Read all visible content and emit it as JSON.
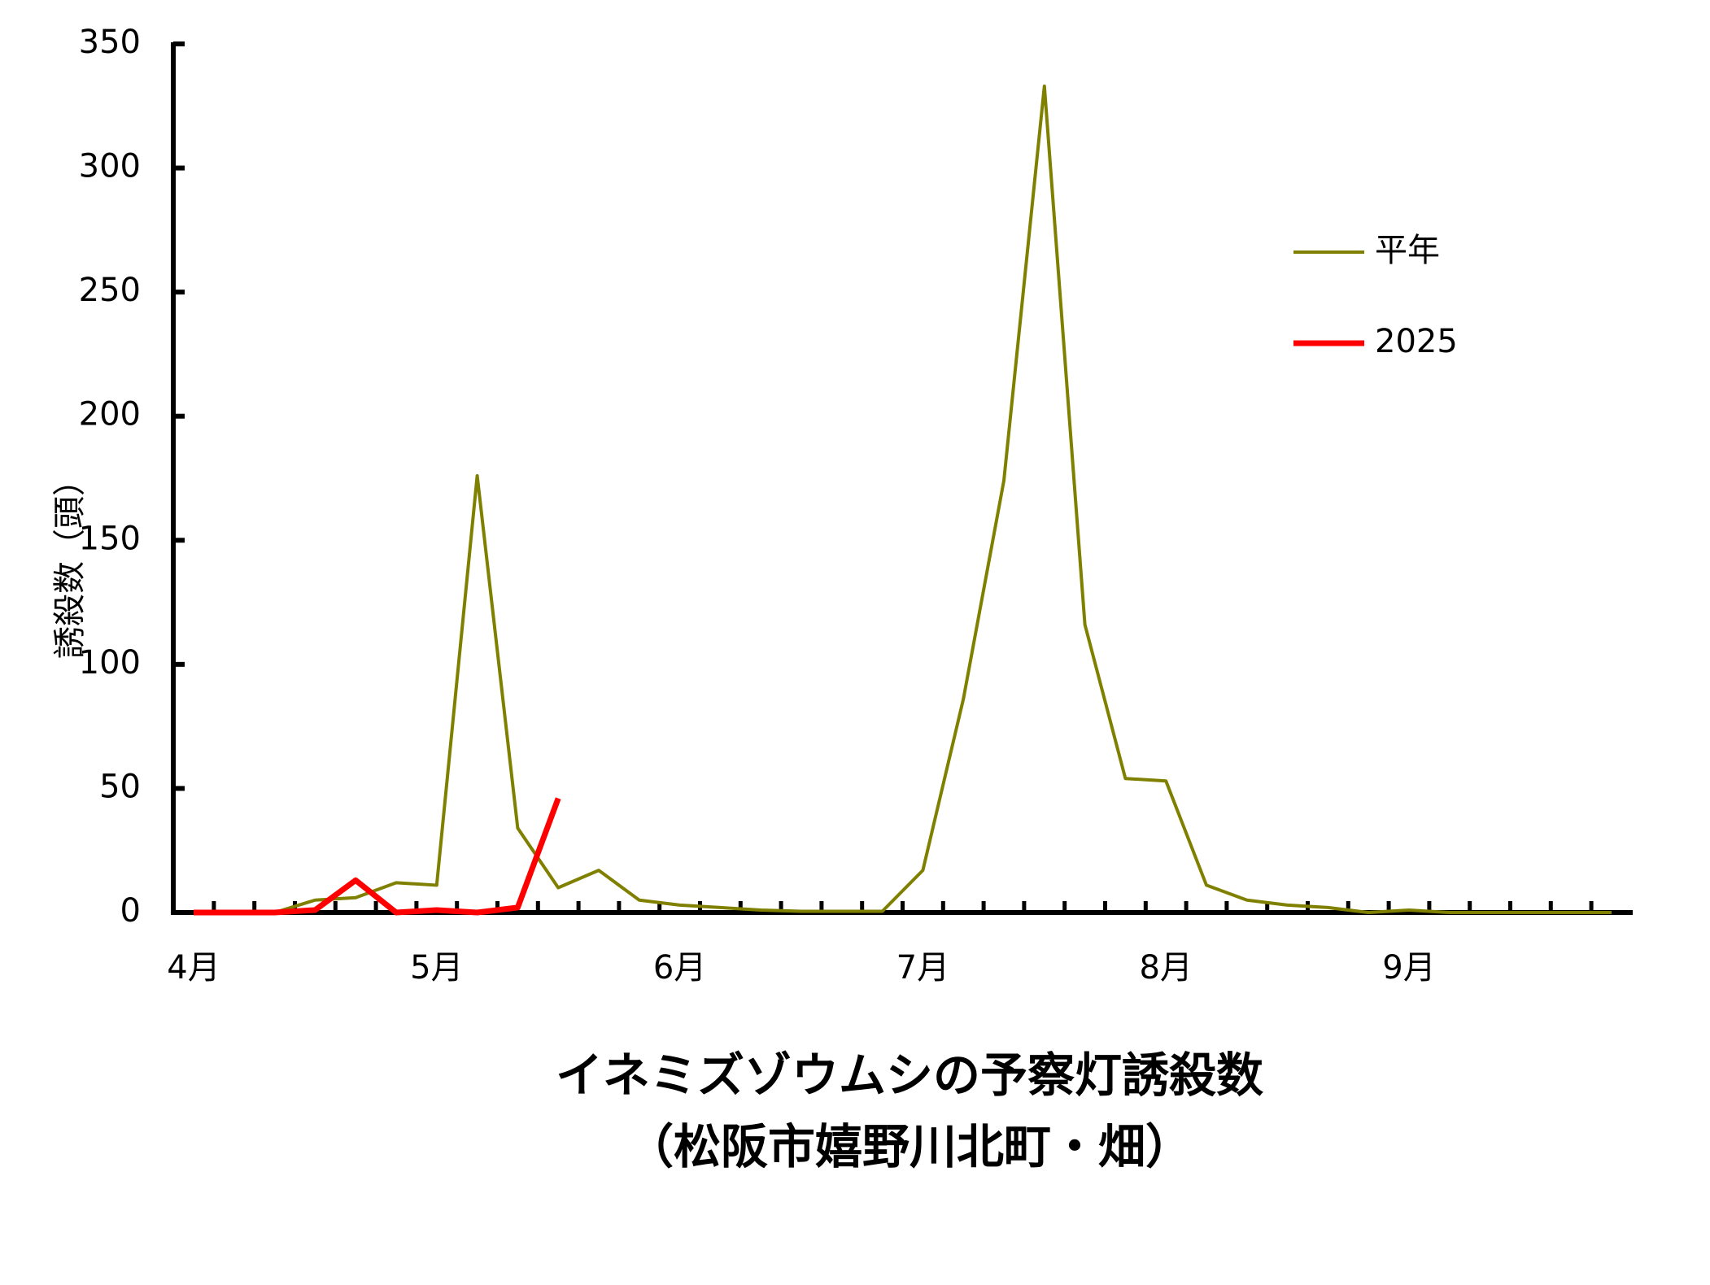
{
  "chart_data": {
    "type": "line",
    "title": "イネミズゾウムシの予察灯誘殺数",
    "subtitle": "（松阪市嬉野川北町・畑）",
    "y_label": "誘殺数（頭）",
    "categories": [
      "4月",
      null,
      null,
      null,
      null,
      null,
      "5月",
      null,
      null,
      null,
      null,
      null,
      "6月",
      null,
      null,
      null,
      null,
      null,
      "7月",
      null,
      null,
      null,
      null,
      null,
      "8月",
      null,
      null,
      null,
      null,
      null,
      "9月",
      null,
      null,
      null,
      null,
      null
    ],
    "series": [
      {
        "name": "平年",
        "color": "#808000",
        "values": [
          0,
          0,
          0,
          5,
          6,
          12,
          11,
          176,
          34,
          10,
          17,
          5,
          3,
          2,
          1,
          0.5,
          0.5,
          0.5,
          17,
          86,
          174,
          333,
          116,
          54,
          53,
          11,
          5,
          3,
          2,
          0,
          1,
          0,
          0,
          0,
          0,
          0
        ]
      },
      {
        "name": "2025",
        "color": "#ff0000",
        "values": [
          0,
          0,
          0,
          1,
          13,
          0,
          1,
          0,
          2,
          46,
          null,
          null,
          null,
          null,
          null,
          null,
          null,
          null,
          null,
          null,
          null,
          null,
          null,
          null,
          null,
          null,
          null,
          null,
          null,
          null,
          null,
          null,
          null,
          null,
          null,
          null
        ]
      }
    ],
    "ylim": [
      0,
      350
    ],
    "yticks": [
      0,
      50,
      100,
      150,
      200,
      250,
      300,
      350
    ],
    "grid": false,
    "legend": "upper right"
  }
}
